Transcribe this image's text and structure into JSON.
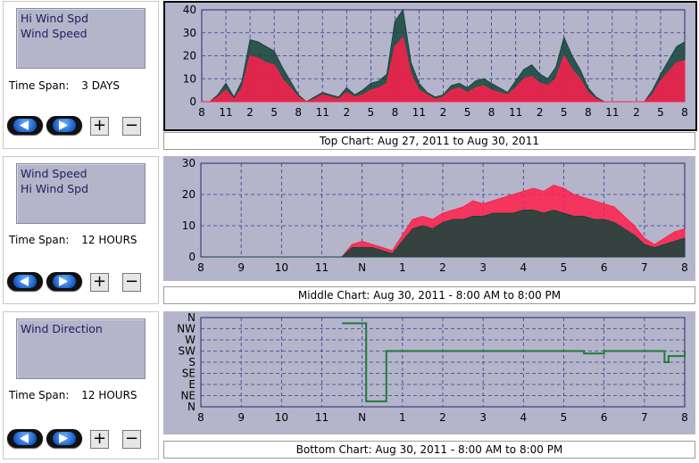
{
  "panels": [
    {
      "legend": [
        "Hi Wind Spd",
        "Wind Speed"
      ],
      "timespan_label": "Time Span:",
      "timespan_value": "3 DAYS"
    },
    {
      "legend": [
        "Wind Speed",
        "Hi Wind Spd"
      ],
      "timespan_label": "Time Span:",
      "timespan_value": "12 HOURS"
    },
    {
      "legend": [
        "Wind Direction"
      ],
      "timespan_label": "Time Span:",
      "timespan_value": "12 HOURS"
    }
  ],
  "controls": {
    "plus": "+",
    "minus": "−"
  },
  "colors": {
    "plot_bg": "#b4b4cb",
    "hi_wind": "#14443a",
    "wind_speed": "#ff1f4b",
    "direction": "#1f7a3a",
    "grid": "#3a3a8c"
  },
  "chart_data": [
    {
      "type": "area",
      "caption": "Top Chart:  Aug 27, 2011  to  Aug 30, 2011",
      "ylim": [
        0,
        40
      ],
      "yticks": [
        "0",
        "10",
        "20",
        "30",
        "40"
      ],
      "xticks": [
        "8",
        "11",
        "2",
        "5",
        "8",
        "11",
        "2",
        "5",
        "8",
        "11",
        "2",
        "5",
        "8",
        "11",
        "2",
        "5",
        "8",
        "11",
        "2",
        "5",
        "8"
      ],
      "x": [
        0,
        1,
        2,
        3,
        4,
        5,
        6,
        7,
        8,
        9,
        10,
        11,
        12,
        13,
        14,
        15,
        16,
        17,
        18,
        19,
        20,
        21,
        22,
        23,
        24,
        25,
        26,
        27,
        28,
        29,
        30,
        31,
        32,
        33,
        34,
        35,
        36,
        37,
        38,
        39,
        40,
        41,
        42,
        43,
        44,
        45,
        46,
        47,
        48,
        49,
        50,
        51,
        52,
        53,
        54,
        55,
        56,
        57,
        58,
        59,
        60
      ],
      "series": [
        {
          "name": "Hi Wind Spd",
          "values": [
            0,
            0,
            3,
            8,
            2,
            9,
            27,
            26,
            24,
            22,
            15,
            9,
            3,
            0,
            2,
            4,
            3,
            2,
            6,
            3,
            5,
            8,
            9,
            12,
            35,
            40,
            17,
            8,
            4,
            2,
            3,
            7,
            8,
            6,
            9,
            10,
            8,
            6,
            4,
            9,
            14,
            16,
            12,
            10,
            15,
            28,
            20,
            14,
            6,
            2,
            0,
            0,
            0,
            0,
            0,
            0,
            5,
            12,
            18,
            24,
            26
          ]
        },
        {
          "name": "Wind Speed",
          "values": [
            0,
            0,
            2,
            5,
            1,
            6,
            20,
            19,
            17,
            16,
            10,
            6,
            2,
            0,
            1,
            3,
            2,
            1,
            4,
            2,
            3,
            5,
            6,
            8,
            24,
            28,
            12,
            5,
            3,
            1,
            2,
            5,
            6,
            4,
            6,
            7,
            5,
            4,
            3,
            6,
            10,
            11,
            8,
            7,
            10,
            20,
            14,
            10,
            4,
            1,
            0,
            0,
            0,
            0,
            0,
            0,
            3,
            9,
            13,
            17,
            18
          ]
        }
      ]
    },
    {
      "type": "area",
      "caption": "Middle Chart:  Aug 30, 2011 - 8:00 AM  to  8:00 PM",
      "ylim": [
        0,
        30
      ],
      "yticks": [
        "0",
        "10",
        "20",
        "30"
      ],
      "xticks": [
        "8",
        "9",
        "10",
        "11",
        "N",
        "1",
        "2",
        "3",
        "4",
        "5",
        "6",
        "7",
        "8"
      ],
      "x": [
        0,
        0.25,
        0.5,
        0.75,
        1,
        1.25,
        1.5,
        1.75,
        2,
        2.25,
        2.5,
        2.75,
        3,
        3.25,
        3.5,
        3.75,
        4,
        4.25,
        4.5,
        4.75,
        5,
        5.25,
        5.5,
        5.75,
        6,
        6.25,
        6.5,
        6.75,
        7,
        7.25,
        7.5,
        7.75,
        8,
        8.25,
        8.5,
        8.75,
        9,
        9.25,
        9.5,
        9.75,
        10,
        10.25,
        10.5,
        10.75,
        11,
        11.25,
        11.5,
        11.75,
        12
      ],
      "series": [
        {
          "name": "Wind Speed",
          "values": [
            0,
            0,
            0,
            0,
            0,
            0,
            0,
            0,
            0,
            0,
            0,
            0,
            0,
            0,
            0,
            4,
            5,
            4,
            3,
            2,
            7,
            12,
            13,
            12,
            14,
            15,
            16,
            18,
            17,
            18,
            19,
            20,
            21,
            22,
            21,
            23,
            22,
            20,
            19,
            18,
            17,
            16,
            13,
            10,
            6,
            4,
            6,
            8,
            9
          ]
        },
        {
          "name": "Hi Wind Spd",
          "values": [
            0,
            0,
            0,
            0,
            0,
            0,
            0,
            0,
            0,
            0,
            0,
            0,
            0,
            0,
            0,
            3,
            3,
            3,
            2,
            1,
            5,
            9,
            10,
            9,
            11,
            12,
            12,
            13,
            13,
            14,
            14,
            14,
            15,
            15,
            14,
            15,
            14,
            13,
            13,
            12,
            12,
            11,
            9,
            7,
            4,
            3,
            4,
            5,
            6
          ]
        }
      ]
    },
    {
      "type": "line",
      "caption": "Bottom Chart:  Aug 30, 2011 - 8:00 AM  to  8:00 PM",
      "ylim": [
        0,
        360
      ],
      "yticks": [
        "N",
        "NE",
        "E",
        "SE",
        "S",
        "SW",
        "W",
        "NW",
        "N"
      ],
      "xticks": [
        "8",
        "9",
        "10",
        "11",
        "N",
        "1",
        "2",
        "3",
        "4",
        "5",
        "6",
        "7",
        "8"
      ],
      "series": [
        {
          "name": "Wind Direction",
          "x": [
            3.5,
            3.7,
            4.0,
            4.1,
            4.4,
            4.6,
            5,
            6,
            7,
            8,
            9,
            9.5,
            10,
            11,
            11.4,
            11.5,
            11.6,
            11.8,
            12
          ],
          "values": [
            337,
            337,
            337,
            22,
            22,
            225,
            225,
            225,
            225,
            225,
            225,
            215,
            225,
            225,
            225,
            180,
            205,
            205,
            225
          ]
        }
      ]
    }
  ]
}
